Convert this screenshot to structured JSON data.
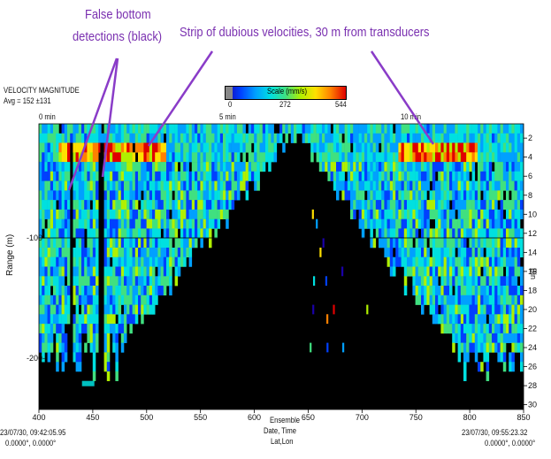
{
  "annotations": {
    "false_bottom_line1": "False bottom",
    "false_bottom_line2": "detections (black)",
    "strip": "Strip of dubious velocities, 30 m from transducers"
  },
  "header": {
    "title": "VELOCITY MAGNITUDE",
    "avg": "Avg = 152 ±131"
  },
  "scale": {
    "label": "Scale (mm/s)",
    "ticks": [
      "0",
      "272",
      "544"
    ],
    "colors": [
      "#1a00a8",
      "#0040ff",
      "#00a0ff",
      "#00e0e0",
      "#40e080",
      "#b0f000",
      "#ffe000",
      "#ff8000",
      "#e00000"
    ]
  },
  "chart_data": {
    "type": "heatmap",
    "title": "VELOCITY MAGNITUDE",
    "subtitle": "Avg = 152 ±131",
    "ylabel": "Range (m)",
    "xlabel_lines": [
      "Ensemble",
      "Date, Time",
      "Lat,Lon"
    ],
    "x_ticks": [
      400,
      450,
      500,
      550,
      600,
      650,
      700,
      750,
      800,
      850
    ],
    "x_tick_labels": [
      "400",
      "450",
      "500",
      "550",
      "600",
      "650",
      "700",
      "750",
      "800",
      "850"
    ],
    "top_time_labels": [
      "0 min",
      "5 min",
      "10 min"
    ],
    "y_left_ticks": [
      "-100-",
      "-200-"
    ],
    "y_right_ticks": [
      "2",
      "4",
      "6",
      "8",
      "10",
      "12",
      "14",
      "16",
      "18",
      "20",
      "22",
      "24",
      "26",
      "28",
      "30"
    ],
    "value_range_mm_s": [
      0,
      544
    ],
    "avg_mm_s": 152,
    "std_mm_s": 131,
    "bottom_left": {
      "line1": "23/07/30, 09:42:05.95",
      "line2": "0.0000°, 0.0000°"
    },
    "bottom_right": {
      "line1": "23/07/30, 09:55:23.32",
      "line2": "0.0000°, 0.0000°"
    },
    "right_axis_partial": "Bin"
  }
}
